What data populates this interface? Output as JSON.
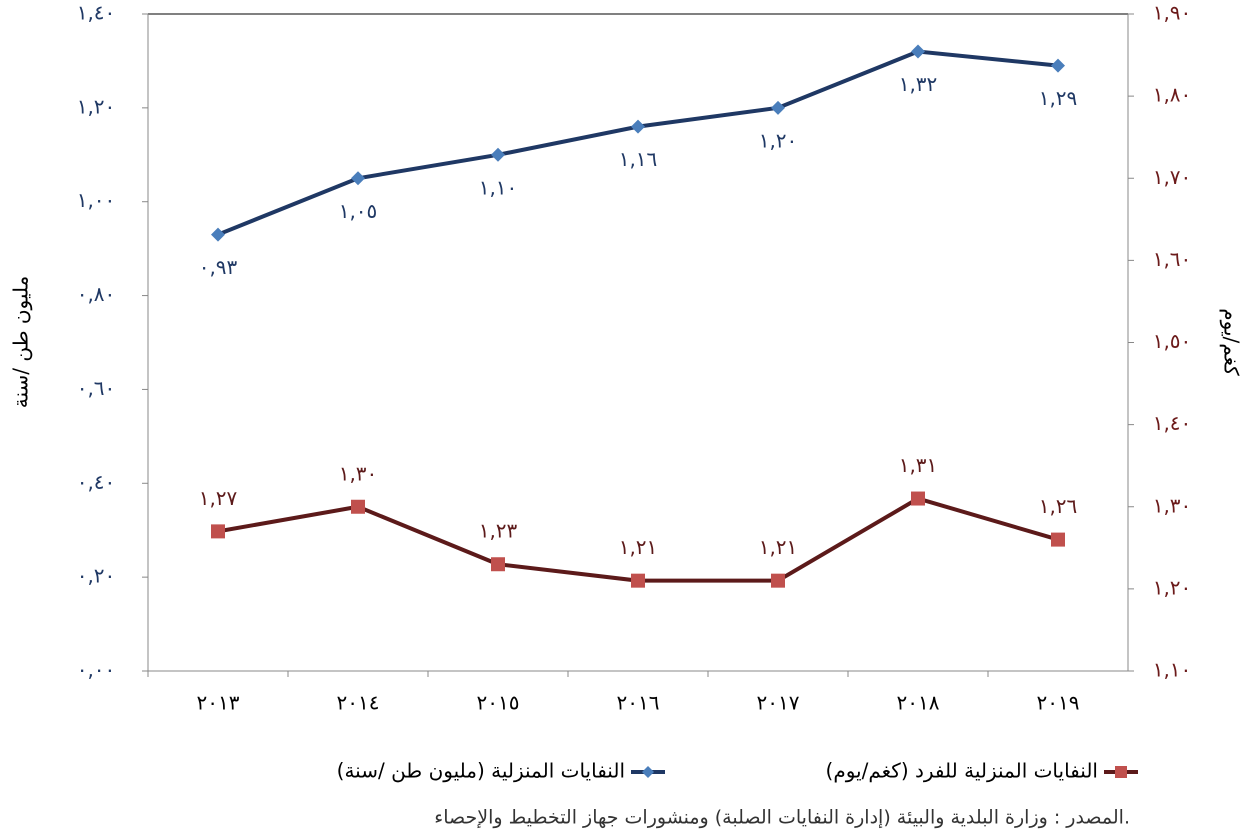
{
  "chart_data": {
    "type": "line",
    "categories": [
      "٢٠١٣",
      "٢٠١٤",
      "٢٠١٥",
      "٢٠١٦",
      "٢٠١٧",
      "٢٠١٨",
      "٢٠١٩"
    ],
    "series": [
      {
        "name": "النفايات المنزلية (مليون طن /سنة)",
        "color": "#1f3864",
        "marker_color": "#4a7ebb",
        "marker": "diamond",
        "axis": "y",
        "values": [
          0.93,
          1.05,
          1.1,
          1.16,
          1.2,
          1.32,
          1.29
        ],
        "value_labels": [
          "٠,٩٣",
          "١,٠٥",
          "١,١٠",
          "١,١٦",
          "١,٢٠",
          "١,٣٢",
          "١,٢٩"
        ]
      },
      {
        "name": "النفايات المنزلية للفرد (كغم/يوم)",
        "color": "#5c1a1a",
        "marker_color": "#c0504d",
        "marker": "square",
        "axis": "y2",
        "values": [
          1.27,
          1.3,
          1.23,
          1.21,
          1.21,
          1.31,
          1.26
        ],
        "value_labels": [
          "١,٢٧",
          "١,٣٠",
          "١,٢٣",
          "١,٢١",
          "١,٢١",
          "١,٣١",
          "١,٢٦"
        ]
      }
    ],
    "ylabel": "مليون طن /سنة",
    "y2label": "كغم/يوم",
    "ylim": [
      0,
      1.4
    ],
    "yticks": [
      {
        "value": 0,
        "label": "٠,٠٠"
      },
      {
        "value": 0.2,
        "label": "٠,٢٠"
      },
      {
        "value": 0.4,
        "label": "٠,٤٠"
      },
      {
        "value": 0.6,
        "label": "٠,٦٠"
      },
      {
        "value": 0.8,
        "label": "٠,٨٠"
      },
      {
        "value": 1.0,
        "label": "١,٠٠"
      },
      {
        "value": 1.2,
        "label": "١,٢٠"
      },
      {
        "value": 1.4,
        "label": "١,٤٠"
      }
    ],
    "y2lim": [
      1.1,
      1.9
    ],
    "y2ticks": [
      {
        "value": 1.1,
        "label": "١,١٠"
      },
      {
        "value": 1.2,
        "label": "١,٢٠"
      },
      {
        "value": 1.3,
        "label": "١,٣٠"
      },
      {
        "value": 1.4,
        "label": "١,٤٠"
      },
      {
        "value": 1.5,
        "label": "١,٥٠"
      },
      {
        "value": 1.6,
        "label": "١,٦٠"
      },
      {
        "value": 1.7,
        "label": "١,٧٠"
      },
      {
        "value": 1.8,
        "label": "١,٨٠"
      },
      {
        "value": 1.9,
        "label": "١,٩٠"
      }
    ],
    "ytick_color": "#1f3864",
    "y2tick_color": "#6b1a1a",
    "grid": false,
    "legend": "bottom",
    "source": "المصدر : وزارة البلدية والبيئة (إدارة النفايات الصلبة) ومنشورات جهاز التخطيط والإحصاء."
  }
}
